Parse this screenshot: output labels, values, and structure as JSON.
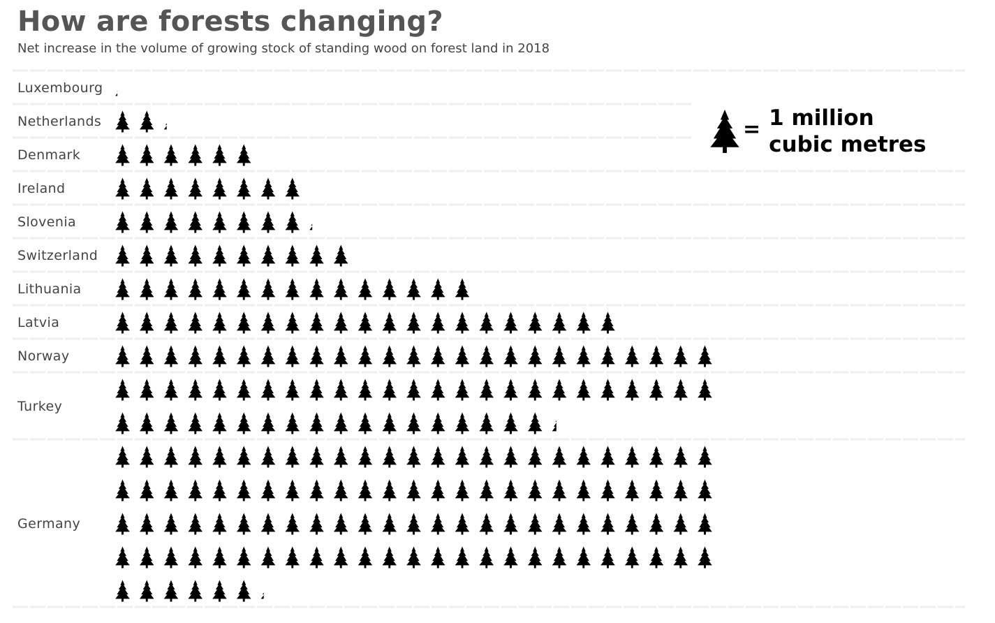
{
  "title": "How are forests changing?",
  "subtitle": "Net increase in the volume of growing stock of standing wood on forest land in 2018",
  "legend": {
    "icon": "tree-icon",
    "equals": "=",
    "line1": "1 million",
    "line2": "cubic metres"
  },
  "colors": {
    "icon": "#000000",
    "title": "#555555",
    "label": "#444444",
    "separator": "#eeeeee"
  },
  "chart_data": {
    "type": "pictogram",
    "unit": "million cubic metres",
    "icons_per_row": 25,
    "categories": [
      "Luxembourg",
      "Netherlands",
      "Denmark",
      "Ireland",
      "Slovenia",
      "Switzerland",
      "Lithuania",
      "Latvia",
      "Norway",
      "Turkey",
      "Germany"
    ],
    "values": [
      0.15,
      2.2,
      6.0,
      8.0,
      8.2,
      10.0,
      15.0,
      21.0,
      25.0,
      43.3,
      106.2
    ]
  }
}
